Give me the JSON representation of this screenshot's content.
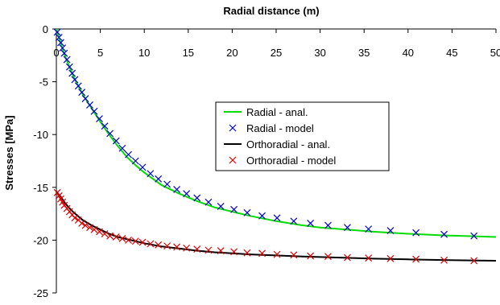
{
  "chart_data": {
    "type": "line",
    "xlabel": "Radial distance (m)",
    "ylabel": "Stresses [MPa]",
    "xlim": [
      0,
      50
    ],
    "ylim": [
      -25,
      0
    ],
    "x_ticks": [
      0,
      5,
      10,
      15,
      20,
      25,
      30,
      35,
      40,
      45,
      50
    ],
    "y_ticks": [
      0,
      -5,
      -10,
      -15,
      -20,
      -25
    ],
    "x_axis_position": "top",
    "grid": false,
    "legend_position": "center-right",
    "series": [
      {
        "name": "Radial - anal.",
        "style": "line",
        "color": "#00dd00",
        "x": [
          0,
          0.3,
          0.6,
          1,
          1.5,
          2,
          2.5,
          3,
          4,
          5,
          6,
          7,
          8,
          9,
          10,
          12,
          14,
          16,
          18,
          20,
          22,
          25,
          28,
          30,
          33,
          36,
          40,
          44,
          48,
          50
        ],
        "y": [
          0,
          -0.8,
          -1.6,
          -2.6,
          -3.6,
          -4.6,
          -5.4,
          -6.2,
          -7.5,
          -8.8,
          -10.0,
          -11.1,
          -12.1,
          -12.9,
          -13.6,
          -14.8,
          -15.6,
          -16.3,
          -16.9,
          -17.3,
          -17.7,
          -18.2,
          -18.6,
          -18.8,
          -19.0,
          -19.2,
          -19.4,
          -19.55,
          -19.65,
          -19.7
        ]
      },
      {
        "name": "Radial - model",
        "style": "marker-x",
        "color": "#0000cc",
        "x": [
          0.1,
          0.3,
          0.5,
          0.7,
          0.9,
          1.2,
          1.5,
          1.8,
          2.1,
          2.5,
          2.9,
          3.3,
          3.8,
          4.3,
          4.9,
          5.5,
          6.1,
          6.8,
          7.5,
          8.2,
          9.0,
          9.8,
          10.7,
          11.6,
          12.6,
          13.7,
          14.8,
          16.0,
          17.3,
          18.7,
          20.2,
          21.7,
          23.4,
          25.1,
          27.0,
          28.9,
          30.9,
          33.1,
          35.5,
          38.0,
          40.9,
          44.1,
          47.5
        ],
        "y": [
          -0.3,
          -0.8,
          -1.3,
          -1.8,
          -2.3,
          -2.9,
          -3.6,
          -4.2,
          -4.8,
          -5.4,
          -6.0,
          -6.6,
          -7.2,
          -7.8,
          -8.5,
          -9.2,
          -9.9,
          -10.6,
          -11.3,
          -11.9,
          -12.5,
          -13.1,
          -13.7,
          -14.2,
          -14.7,
          -15.2,
          -15.6,
          -16.0,
          -16.4,
          -16.8,
          -17.1,
          -17.4,
          -17.7,
          -17.9,
          -18.2,
          -18.4,
          -18.6,
          -18.8,
          -18.95,
          -19.1,
          -19.3,
          -19.45,
          -19.6
        ]
      },
      {
        "name": "Orthoradial - anal.",
        "style": "line",
        "color": "#000000",
        "x": [
          0,
          0.5,
          1,
          1.5,
          2,
          3,
          4,
          5,
          6,
          7,
          8,
          9,
          10,
          12,
          14,
          16,
          18,
          20,
          22,
          25,
          28,
          30,
          33,
          36,
          40,
          44,
          48,
          50
        ],
        "y": [
          -15.4,
          -15.9,
          -16.5,
          -17.0,
          -17.4,
          -18.1,
          -18.6,
          -19.0,
          -19.4,
          -19.7,
          -19.9,
          -20.1,
          -20.3,
          -20.6,
          -20.8,
          -21.0,
          -21.15,
          -21.25,
          -21.35,
          -21.45,
          -21.55,
          -21.6,
          -21.68,
          -21.75,
          -21.82,
          -21.88,
          -21.93,
          -21.95
        ]
      },
      {
        "name": "Orthoradial - model",
        "style": "marker-x",
        "color": "#dd0000",
        "x": [
          0.1,
          0.3,
          0.5,
          0.7,
          0.9,
          1.2,
          1.5,
          1.8,
          2.1,
          2.5,
          2.9,
          3.3,
          3.8,
          4.3,
          4.9,
          5.5,
          6.1,
          6.8,
          7.5,
          8.2,
          9.0,
          9.8,
          10.7,
          11.6,
          12.6,
          13.7,
          14.8,
          16.0,
          17.3,
          18.7,
          20.2,
          21.7,
          23.4,
          25.1,
          27.0,
          28.9,
          30.9,
          33.1,
          35.5,
          38.0,
          40.9,
          44.1,
          47.5
        ],
        "y": [
          -15.5,
          -15.8,
          -16.1,
          -16.4,
          -16.7,
          -17.0,
          -17.3,
          -17.6,
          -17.9,
          -18.1,
          -18.4,
          -18.6,
          -18.8,
          -19.0,
          -19.2,
          -19.4,
          -19.6,
          -19.7,
          -19.85,
          -20.0,
          -20.1,
          -20.2,
          -20.35,
          -20.45,
          -20.55,
          -20.65,
          -20.75,
          -20.85,
          -20.95,
          -21.0,
          -21.1,
          -21.2,
          -21.25,
          -21.35,
          -21.4,
          -21.5,
          -21.55,
          -21.65,
          -21.7,
          -21.75,
          -21.8,
          -21.9,
          -21.95
        ]
      }
    ]
  }
}
